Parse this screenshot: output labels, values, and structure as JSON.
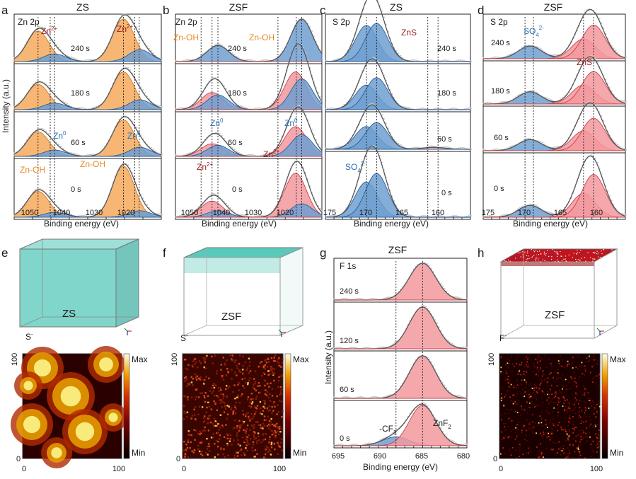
{
  "colors": {
    "orange": "#f6a95a",
    "orange_line": "#c97a2a",
    "blue": "#6f9fd1",
    "blue_line": "#2b5f98",
    "red": "#f2999d",
    "red_line": "#c8424b",
    "envelope": "#555555",
    "raw": "#c9c9c9",
    "dark_red_text": "#9b1b1b",
    "blue_text": "#2a6fb5",
    "orange_text": "#e8892a",
    "teal": "#4fc6b6",
    "red_surface": "#c4141a"
  },
  "axis_labels": {
    "binding": "Binding energy (eV)",
    "intensity": "Intensity (a.u.)"
  },
  "panels": {
    "a": {
      "letter": "a",
      "title": "ZS",
      "tag": "Zn 2p",
      "times": [
        "240 s",
        "180 s",
        "60 s",
        "0 s"
      ],
      "ann": {
        "zn2_a": "Zn",
        "zn2_b": "Zn",
        "zn2_sup": "2+",
        "zn0_a": "Zn",
        "zn0_b": "Zn",
        "zn0_sup": "0",
        "znoh_a": "Zn-OH",
        "znoh_b": "Zn-OH"
      },
      "ticks": [
        "1050",
        "1040",
        "1030",
        "1020"
      ]
    },
    "b": {
      "letter": "b",
      "title": "ZSF",
      "tag": "Zn 2p",
      "times": [
        "240 s",
        "180 s",
        "60 s",
        "0 s"
      ],
      "ann": {
        "znoh_a": "Zn-OH",
        "znoh_b": "Zn-OH",
        "zn0_a": "Zn",
        "zn0_b": "Zn",
        "zn0_sup": "0",
        "zn2_a": "Zn",
        "zn2_b": "Zn",
        "zn2_sup": "2+"
      },
      "ticks": [
        "1050",
        "1040",
        "1030",
        "1020"
      ]
    },
    "c": {
      "letter": "c",
      "title": "ZS",
      "tag": "S 2p",
      "times": [
        "240 s",
        "180 s",
        "60 s",
        "0 s"
      ],
      "ann": {
        "zns": "ZnS",
        "so4": "SO",
        "so4_sub": "4",
        "so4_sup": "2-"
      },
      "ticks": [
        "175",
        "170",
        "165",
        "160"
      ]
    },
    "d": {
      "letter": "d",
      "title": "ZSF",
      "tag": "S 2p",
      "times": [
        "240 s",
        "180 s",
        "60 s",
        "0 s"
      ],
      "ann": {
        "so4": "SO",
        "so4_sub": "4",
        "so4_sup": "2-",
        "zns": "ZnS"
      },
      "ticks": [
        "175",
        "170",
        "165",
        "160"
      ]
    },
    "e": {
      "letter": "e",
      "cube_label": "ZS",
      "ion": "S",
      "ion_sup": "-",
      "map_top": "100",
      "map_x0": "0",
      "map_x1": "100",
      "map_y0": "0",
      "cb_max": "Max",
      "cb_min": "Min"
    },
    "f": {
      "letter": "f",
      "cube_label": "ZSF",
      "ion": "S",
      "ion_sup": "-",
      "map_top": "100",
      "map_x0": "0",
      "map_x1": "100",
      "map_y0": "0",
      "cb_max": "Max",
      "cb_min": "Min"
    },
    "g": {
      "letter": "g",
      "title": "ZSF",
      "tag": "F 1s",
      "times": [
        "240 s",
        "120 s",
        "60 s",
        "0 s"
      ],
      "ann": {
        "cf3": "-CF",
        "cf3_sub": "3",
        "znf2": "ZnF",
        "znf2_sub": "2"
      },
      "ticks": [
        "695",
        "690",
        "685",
        "680"
      ]
    },
    "h": {
      "letter": "h",
      "cube_label": "ZSF",
      "ion": "F",
      "ion_sup": "-",
      "map_top": "100",
      "map_x0": "0",
      "map_x1": "100",
      "map_y0": "0",
      "cb_max": "Max",
      "cb_min": "Min"
    }
  },
  "chart_data": [
    {
      "panel": "a",
      "type": "line",
      "title": "ZS",
      "xlabel": "Binding energy (eV)",
      "ylabel": "Intensity (a.u.)",
      "xlim": [
        1055,
        1015
      ],
      "series_time": [
        "240 s",
        "180 s",
        "60 s",
        "0 s"
      ],
      "peaks": [
        {
          "name": "Zn-OH 2p1/2",
          "center": 1048.5,
          "color": "orange",
          "amp": [
            0.72,
            0.62,
            0.62,
            0.48
          ]
        },
        {
          "name": "Zn 2p1/2 metal",
          "center": 1044.0,
          "color": "blue",
          "amp": [
            0.18,
            0.16,
            0.16,
            0.09
          ]
        },
        {
          "name": "Zn-OH 2p3/2",
          "center": 1025.3,
          "color": "orange",
          "amp": [
            1.0,
            0.92,
            0.92,
            0.95
          ]
        },
        {
          "name": "Zn 2p3/2 metal",
          "center": 1020.8,
          "color": "blue",
          "amp": [
            0.28,
            0.24,
            0.23,
            0.12
          ]
        }
      ],
      "dashed_lines": [
        1048.5,
        1045.2,
        1044.0,
        1025.3,
        1022.2,
        1021.0
      ]
    },
    {
      "panel": "b",
      "type": "line",
      "title": "ZSF",
      "xlabel": "Binding energy (eV)",
      "xlim": [
        1055,
        1015
      ],
      "series_time": [
        "240 s",
        "180 s",
        "60 s",
        "0 s"
      ],
      "peaks": [
        {
          "name": "Zn2+ 2p1/2",
          "center": 1045.0,
          "color": "red",
          "amp": [
            0.0,
            0.42,
            0.32,
            0.3
          ]
        },
        {
          "name": "Zn 2p1/2 metal",
          "center": 1043.4,
          "color": "blue",
          "amp": [
            0.38,
            0.36,
            0.28,
            0.12
          ]
        },
        {
          "name": "Zn2+ 2p3/2",
          "center": 1022.2,
          "color": "red",
          "amp": [
            0.0,
            0.92,
            0.75,
            0.82
          ]
        },
        {
          "name": "Zn 2p3/2 metal",
          "center": 1020.5,
          "color": "blue",
          "amp": [
            1.0,
            0.75,
            0.55,
            0.25
          ]
        }
      ],
      "dashed_lines": [
        1048.0,
        1045.0,
        1043.4,
        1027.0,
        1022.0,
        1020.5
      ]
    },
    {
      "panel": "c",
      "type": "line",
      "title": "ZS",
      "xlabel": "Binding energy (eV)",
      "xlim": [
        175,
        158
      ],
      "series_time": [
        "240 s",
        "180 s",
        "60 s",
        "0 s"
      ],
      "peaks": [
        {
          "name": "SO4 2- 2p1/2",
          "center": 170.2,
          "color": "blue",
          "amp": [
            0.85,
            0.6,
            0.7,
            0.58
          ]
        },
        {
          "name": "SO4 2- 2p3/2",
          "center": 169.0,
          "color": "blue",
          "amp": [
            0.9,
            0.78,
            0.82,
            0.72
          ]
        },
        {
          "name": "ZnS",
          "center": 162.3,
          "color": "red",
          "amp": [
            0.0,
            0.0,
            0.06,
            0.0
          ]
        }
      ],
      "dashed_lines": [
        170.2,
        169.0,
        163.0,
        161.8
      ]
    },
    {
      "panel": "d",
      "type": "line",
      "title": "ZSF",
      "xlabel": "Binding energy (eV)",
      "xlim": [
        175,
        158
      ],
      "series_time": [
        "240 s",
        "180 s",
        "60 s",
        "0 s"
      ],
      "peaks": [
        {
          "name": "SO4 2-",
          "center": 169.4,
          "color": "blue",
          "amp": [
            0.32,
            0.32,
            0.28,
            0.2
          ]
        },
        {
          "name": "ZnS 2p1/2",
          "center": 163.0,
          "color": "red",
          "amp": [
            0.5,
            0.5,
            0.5,
            0.4
          ]
        },
        {
          "name": "ZnS 2p3/2",
          "center": 161.8,
          "color": "red",
          "amp": [
            0.85,
            0.85,
            0.82,
            0.72
          ]
        }
      ],
      "dashed_lines": [
        170.0,
        169.0,
        163.0,
        161.8
      ]
    },
    {
      "panel": "g",
      "type": "line",
      "title": "ZSF",
      "xlabel": "Binding energy (eV)",
      "ylabel": "Intensity (a.u.)",
      "xlim": [
        695,
        680
      ],
      "series_time": [
        "240 s",
        "120 s",
        "60 s",
        "0 s"
      ],
      "peaks": [
        {
          "name": "-CF3",
          "center": 688.0,
          "color": "blue",
          "amp": [
            0.0,
            0.0,
            0.0,
            0.22
          ]
        },
        {
          "name": "ZnF2",
          "center": 685.0,
          "color": "red",
          "amp": [
            1.0,
            1.0,
            1.0,
            1.0
          ]
        }
      ],
      "dashed_lines": [
        688.0,
        685.0
      ]
    }
  ]
}
